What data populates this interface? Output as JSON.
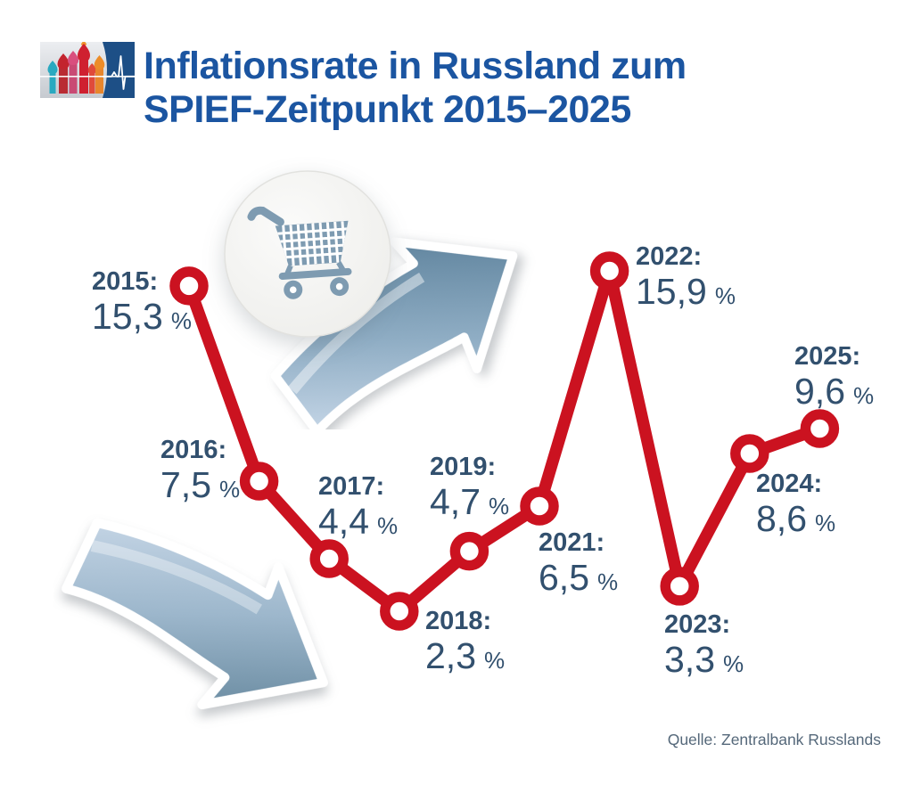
{
  "header": {
    "title_line1": "Inflationsrate in Russland zum",
    "title_line2": "SPIEF-Zeitpunkt 2015–2025"
  },
  "source": "Quelle: Zentralbank Russlands",
  "colors": {
    "title_blue": "#1b55a1",
    "label_slate": "#32506e",
    "line_red": "#cb1220",
    "source_gray": "#55687a",
    "cart_icon": "#7e9bb1",
    "logo_navy": "#1d4f86",
    "arrow_steel": "#547b99",
    "arrow_light": "#cfdfef"
  },
  "chart_data": {
    "type": "line",
    "title": "Inflationsrate in Russland zum SPIEF-Zeitpunkt 2015–2025",
    "x": [
      2015,
      2016,
      2017,
      2018,
      2019,
      2021,
      2022,
      2023,
      2024,
      2025
    ],
    "values": [
      15.3,
      7.5,
      4.4,
      2.3,
      4.7,
      6.5,
      15.9,
      3.3,
      8.6,
      9.6
    ],
    "unit": "%",
    "legend": "none",
    "axes": "none (direct labels at each point)",
    "points": [
      {
        "year": "2015:",
        "value": "15,3",
        "unit": "%"
      },
      {
        "year": "2016:",
        "value": "7,5",
        "unit": "%"
      },
      {
        "year": "2017:",
        "value": "4,4",
        "unit": "%"
      },
      {
        "year": "2018:",
        "value": "2,3",
        "unit": "%"
      },
      {
        "year": "2019:",
        "value": "4,7",
        "unit": "%"
      },
      {
        "year": "2021:",
        "value": "6,5",
        "unit": "%"
      },
      {
        "year": "2022:",
        "value": "15,9",
        "unit": "%"
      },
      {
        "year": "2023:",
        "value": "3,3",
        "unit": "%"
      },
      {
        "year": "2024:",
        "value": "8,6",
        "unit": "%"
      },
      {
        "year": "2025:",
        "value": "9,6",
        "unit": "%"
      }
    ]
  }
}
